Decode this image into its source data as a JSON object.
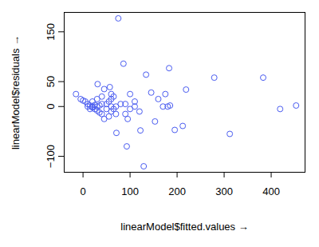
{
  "chart_data": {
    "type": "scatter",
    "x_label": "linearModel$fitted.values",
    "y_label": "linearModel$residuals",
    "color": "#4a5cf0",
    "marker": "circle_open",
    "xlim": [
      -40,
      472
    ],
    "ylim": [
      -132,
      189
    ],
    "xticks": [
      0,
      100,
      200,
      300,
      400
    ],
    "yticks": [
      -100,
      0,
      50,
      150
    ],
    "grid": false,
    "x": [
      75,
      86,
      183,
      134,
      279,
      383,
      219,
      419,
      453,
      312,
      129,
      93,
      71,
      122,
      153,
      212,
      195,
      160,
      170,
      180,
      185,
      175,
      145,
      -15,
      -5,
      0,
      5,
      10,
      15,
      20,
      25,
      30,
      35,
      20,
      30,
      40,
      57,
      31,
      45,
      60,
      65,
      60,
      55,
      50,
      70,
      80,
      60,
      45,
      55,
      40,
      70,
      90,
      95,
      100,
      110,
      110,
      120,
      100,
      90,
      60,
      65,
      30,
      20,
      10,
      15,
      25,
      35,
      40,
      50
    ],
    "y": [
      177,
      86,
      77,
      64,
      58,
      58,
      34,
      -5,
      2,
      -55,
      -120,
      -80,
      -53,
      -48,
      -30,
      -39,
      -47,
      15,
      0,
      0,
      2,
      25,
      28,
      25,
      15,
      12,
      10,
      5,
      2,
      -2,
      -5,
      -8,
      -12,
      10,
      15,
      20,
      39,
      45,
      35,
      25,
      20,
      15,
      10,
      5,
      0,
      5,
      -10,
      -25,
      -20,
      -15,
      -15,
      -15,
      -25,
      -5,
      10,
      0,
      -10,
      25,
      5,
      0,
      -5,
      0,
      0,
      0,
      -5,
      3,
      2,
      5,
      -5
    ]
  }
}
